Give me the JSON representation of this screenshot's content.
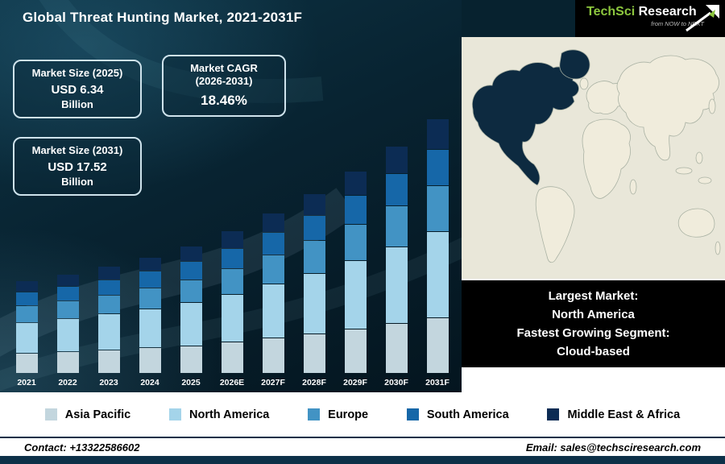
{
  "header": {
    "title": "Global Threat Hunting Market, 2021-2031F",
    "logo": {
      "brand_green": "TechSci",
      "brand_white": "Research",
      "tagline": "from NOW to NEXT"
    }
  },
  "info_boxes": [
    {
      "title": "Market Size (2025)",
      "value": "USD 6.34",
      "unit": "Billion"
    },
    {
      "title": "Market CAGR",
      "subtitle": "(2026-2031)",
      "value": "18.46%"
    },
    {
      "title": "Market Size (2031)",
      "value": "USD 17.52",
      "unit": "Billion"
    }
  ],
  "largest_market_box": {
    "lines": [
      "Largest Market:",
      "North America",
      "Fastest Growing Segment:",
      "Cloud-based"
    ]
  },
  "legend": [
    {
      "label": "Asia Pacific",
      "color": "#c3d6de"
    },
    {
      "label": "North America",
      "color": "#a4d4ea"
    },
    {
      "label": "Europe",
      "color": "#4293c4"
    },
    {
      "label": "South America",
      "color": "#1667a8"
    },
    {
      "label": "Middle East & Africa",
      "color": "#0c2c54"
    }
  ],
  "footer": {
    "contact": "Contact: +13322586602",
    "email": "Email: sales@techsciresearch.com"
  },
  "map": {
    "highlight_region": "North America",
    "highlight_color": "#0d2a40",
    "land_color": "#f0ecdc",
    "ocean_color": "#e9e7d9"
  },
  "chart_data": {
    "type": "bar",
    "stacked": true,
    "title": "Global Threat Hunting Market, 2021-2031F",
    "xlabel": "",
    "ylabel": "",
    "legend_position": "bottom",
    "grid": false,
    "categories": [
      "2021",
      "2022",
      "2023",
      "2024",
      "2025",
      "2026E",
      "2027F",
      "2028F",
      "2029F",
      "2030F",
      "2031F"
    ],
    "series": [
      {
        "name": "Asia Pacific",
        "color": "#c3d6de",
        "values": [
          0.87,
          0.96,
          1.08,
          1.22,
          1.39,
          1.65,
          1.96,
          2.32,
          2.75,
          3.25,
          3.85
        ]
      },
      {
        "name": "North America",
        "color": "#a4d4ea",
        "values": [
          1.34,
          1.49,
          1.67,
          1.89,
          2.16,
          2.55,
          3.03,
          3.58,
          4.25,
          5.03,
          5.96
        ]
      },
      {
        "name": "Europe",
        "color": "#4293c4",
        "values": [
          0.71,
          0.79,
          0.88,
          1.0,
          1.14,
          1.35,
          1.6,
          1.9,
          2.25,
          2.66,
          3.15
        ]
      },
      {
        "name": "South America",
        "color": "#1667a8",
        "values": [
          0.55,
          0.61,
          0.69,
          0.78,
          0.89,
          1.05,
          1.25,
          1.48,
          1.75,
          2.07,
          2.45
        ]
      },
      {
        "name": "Middle East & Africa",
        "color": "#0c2c54",
        "values": [
          0.47,
          0.53,
          0.59,
          0.67,
          0.76,
          0.9,
          1.07,
          1.26,
          1.5,
          1.77,
          2.1
        ]
      }
    ],
    "annotations": {
      "market_size_2025_usd_billion": 6.34,
      "market_size_2031_usd_billion": 17.52,
      "cagr_2026_2031_percent": 18.46
    }
  }
}
